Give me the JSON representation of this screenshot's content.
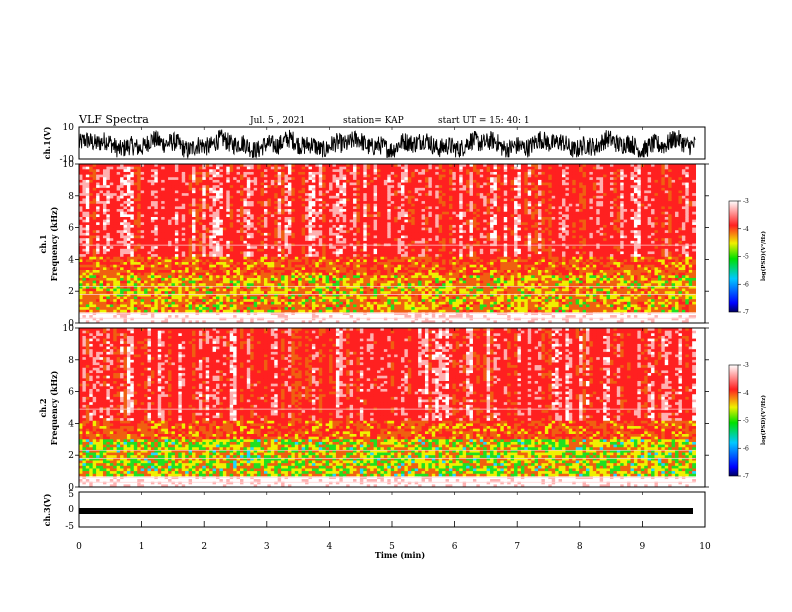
{
  "header": {
    "title": "VLF Spectra",
    "date": "Jul. 5 , 2021",
    "station": "station= KAP",
    "start_ut": "start UT =  15: 40: 1"
  },
  "chart_data": [
    {
      "type": "line",
      "name": "ch1-voltage",
      "ylabel": "ch.1(V)",
      "ylim": [
        -10,
        10
      ],
      "yticks": [
        "10",
        "-10"
      ],
      "xlim": [
        0,
        10
      ],
      "description_values": "dense noisy waveform roughly between -8 and 8 V, centered near -1 V"
    },
    {
      "type": "heatmap",
      "name": "ch1-spectrogram",
      "ylabel": "ch.1",
      "ylabel2": "Frequency (kHz)",
      "ylim": [
        0,
        10
      ],
      "yticks": [
        "0",
        "2",
        "4",
        "6",
        "8",
        "10"
      ],
      "xlim": [
        0,
        9.85
      ],
      "colorbar": {
        "label": "log(PSD)(V²/Hz)",
        "range": [
          -7,
          -3
        ],
        "ticks": [
          "-3",
          "-4",
          "-5",
          "-6",
          "-7"
        ]
      }
    },
    {
      "type": "heatmap",
      "name": "ch2-spectrogram",
      "ylabel": "ch.2",
      "ylabel2": "Frequency (kHz)",
      "ylim": [
        0,
        10
      ],
      "yticks": [
        "0",
        "2",
        "4",
        "6",
        "8",
        "10"
      ],
      "xlim": [
        0,
        9.85
      ],
      "colorbar": {
        "label": "log(PSD)(V²/Hz)",
        "range": [
          -7,
          -3
        ],
        "ticks": [
          "-3",
          "-4",
          "-5",
          "-6",
          "-7"
        ]
      }
    },
    {
      "type": "line",
      "name": "ch3-voltage",
      "ylabel": "ch.3(V)",
      "ylim": [
        -5,
        5
      ],
      "yticks": [
        "5",
        "0",
        "-5"
      ],
      "xlim": [
        0,
        10
      ],
      "description_values": "thick near-constant trace around -0.5 V"
    }
  ],
  "xaxis": {
    "label": "Time (min)",
    "ticks": [
      "0",
      "1",
      "2",
      "3",
      "4",
      "5",
      "6",
      "7",
      "8",
      "9",
      "10"
    ]
  },
  "colors": {
    "red": "#ff2020",
    "yellow": "#f0f000",
    "green": "#20e020",
    "cyan": "#20e0ff",
    "white": "#ffffff"
  }
}
